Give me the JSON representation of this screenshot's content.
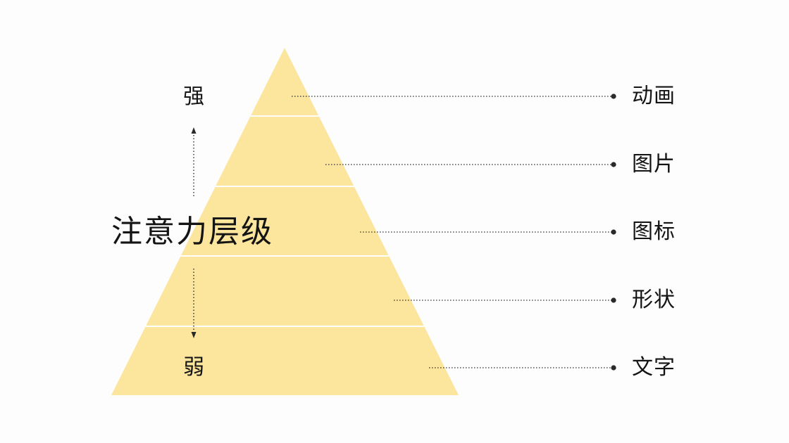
{
  "title": "注意力层级",
  "scale": {
    "strong_label": "强",
    "weak_label": "弱"
  },
  "levels": [
    {
      "label": "动画"
    },
    {
      "label": "图片"
    },
    {
      "label": "图标"
    },
    {
      "label": "形状"
    },
    {
      "label": "文字"
    }
  ],
  "colors": {
    "pyramid_fill": "#fce59c",
    "separator": "#ffffff",
    "leader_line": "#2a2a2a",
    "text": "#141414",
    "background": "#fdfdfd"
  }
}
